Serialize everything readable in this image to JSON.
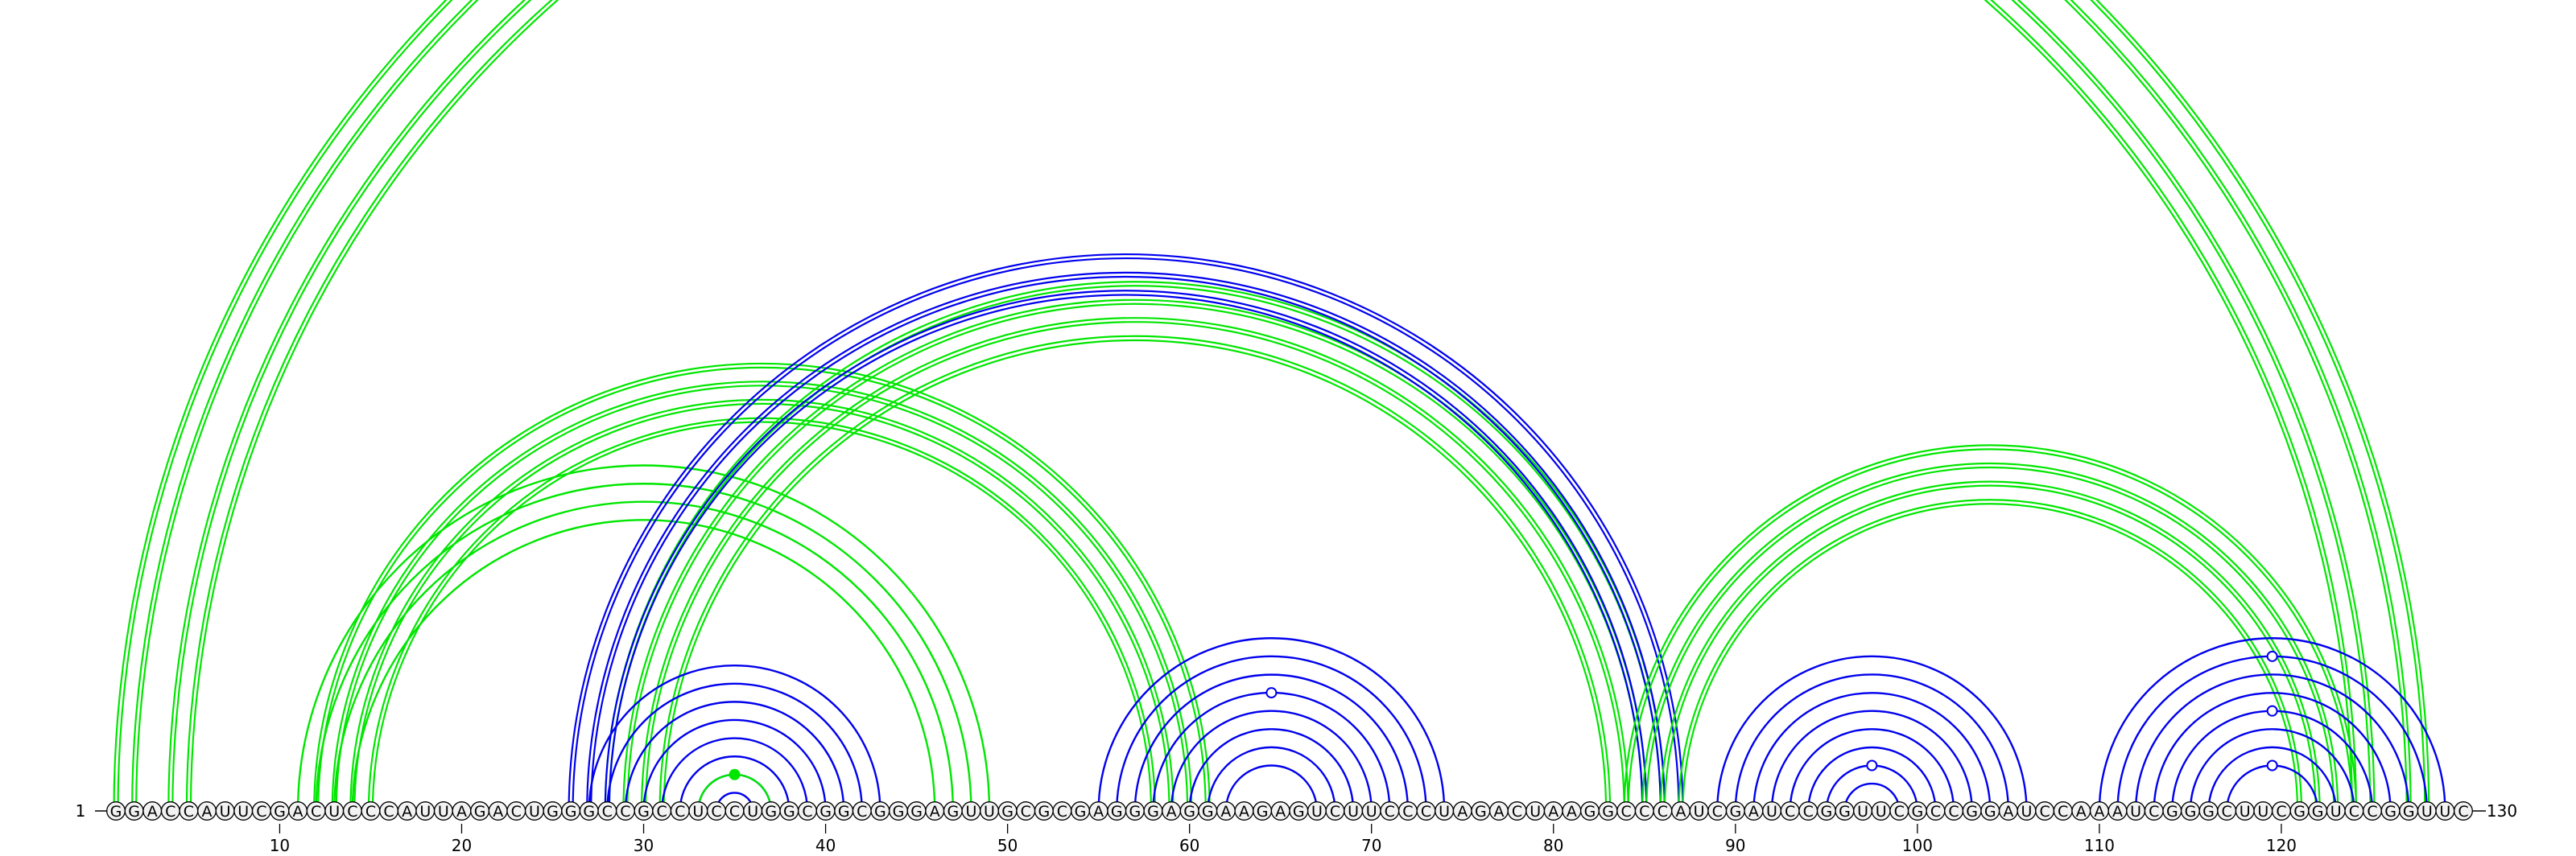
{
  "sequence": "GGACCAUUCGACUCCCAUUAGACUGGGCCGCCUCCUGGCGGCGGGAGUUGCGCGAGGGAGGAAGAGUCUUCCCUAGACUAAGGCCCAUCGAUCCGGUUCGCCGGAUCCAAAUCGGGCUUCGGUCCGGUUC",
  "start_label": "1",
  "end_label": "130",
  "tick_labels": [
    "10",
    "20",
    "30",
    "40",
    "50",
    "60",
    "70",
    "80",
    "90",
    "100",
    "110",
    "120"
  ],
  "colors": {
    "green": "#00e600",
    "blue": "#0000ee",
    "text": "#000000",
    "nucleotide_fill": "#f2f2f2"
  },
  "pair_families": [
    {
      "name": "outer-helix",
      "color": "green",
      "double": true,
      "pairs": [
        [
          1,
          128
        ],
        [
          2,
          127
        ],
        [
          4,
          125
        ],
        [
          5,
          124
        ]
      ]
    },
    {
      "name": "helix-13-46",
      "color": "green",
      "double": false,
      "pairs": [
        [
          11,
          49
        ],
        [
          12,
          48
        ],
        [
          13,
          47
        ],
        [
          14,
          46
        ]
      ]
    },
    {
      "name": "helix-13-60",
      "color": "green",
      "double": true,
      "pairs": [
        [
          12,
          61
        ],
        [
          13,
          60
        ],
        [
          14,
          59
        ],
        [
          15,
          58
        ]
      ]
    },
    {
      "name": "helix-28-84",
      "color": "green",
      "double": true,
      "pairs": [
        [
          28,
          86
        ],
        [
          29,
          85
        ],
        [
          30,
          84
        ],
        [
          31,
          83
        ]
      ]
    },
    {
      "name": "helix-26-86",
      "color": "blue",
      "double": true,
      "pairs": [
        [
          26,
          87
        ],
        [
          27,
          86
        ],
        [
          28,
          85
        ]
      ]
    },
    {
      "name": "helix-83-122",
      "color": "green",
      "double": true,
      "pairs": [
        [
          84,
          124
        ],
        [
          85,
          123
        ],
        [
          86,
          122
        ],
        [
          87,
          121
        ]
      ]
    },
    {
      "name": "hairpin-35",
      "color": "blue",
      "double": false,
      "pairs": [
        [
          27,
          43
        ],
        [
          28,
          42
        ],
        [
          29,
          41
        ],
        [
          30,
          40
        ],
        [
          31,
          39
        ],
        [
          32,
          38
        ],
        [
          33,
          37
        ],
        [
          34,
          36
        ]
      ]
    },
    {
      "name": "hairpin-35-green",
      "color": "green",
      "double": false,
      "pairs": [
        [
          33,
          37
        ]
      ]
    },
    {
      "name": "hairpin-64",
      "color": "blue",
      "double": false,
      "pairs": [
        [
          55,
          74
        ],
        [
          56,
          73
        ],
        [
          57,
          72
        ],
        [
          58,
          71
        ],
        [
          59,
          70
        ],
        [
          60,
          69
        ],
        [
          61,
          68
        ],
        [
          62,
          67
        ]
      ]
    },
    {
      "name": "hairpin-98",
      "color": "blue",
      "double": false,
      "pairs": [
        [
          89,
          106
        ],
        [
          90,
          105
        ],
        [
          91,
          104
        ],
        [
          92,
          103
        ],
        [
          93,
          102
        ],
        [
          94,
          101
        ],
        [
          95,
          100
        ],
        [
          96,
          99
        ]
      ]
    },
    {
      "name": "hairpin-120",
      "color": "blue",
      "double": false,
      "pairs": [
        [
          110,
          129
        ],
        [
          111,
          128
        ],
        [
          112,
          127
        ],
        [
          113,
          126
        ],
        [
          114,
          125
        ],
        [
          115,
          124
        ],
        [
          116,
          123
        ],
        [
          117,
          122
        ]
      ]
    }
  ]
}
